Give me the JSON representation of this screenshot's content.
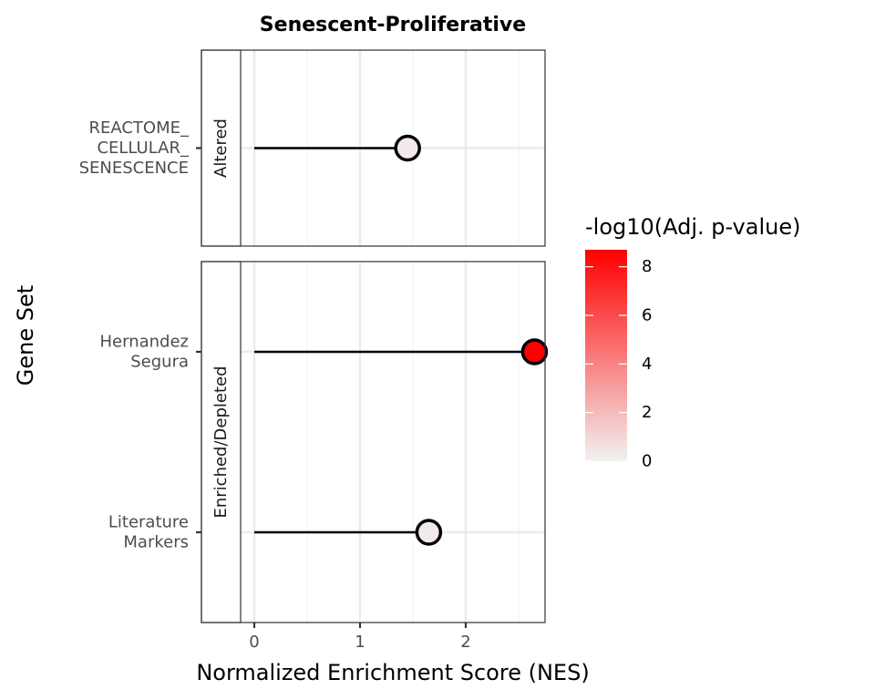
{
  "chart_data": {
    "type": "lollipop",
    "title": "Senescent-Proliferative",
    "xlabel": "Normalized Enrichment Score (NES)",
    "ylabel": "Gene Set",
    "xlim": [
      -0.5,
      2.75
    ],
    "x_ticks": [
      0,
      1,
      2
    ],
    "grid": true,
    "panels": [
      {
        "strip_label": "Altered",
        "points": [
          {
            "label": [
              "REACTOME_",
              "CELLULAR_",
              "SENESCENCE"
            ],
            "nes": 1.45,
            "neg_log10_padj": 0.3
          }
        ]
      },
      {
        "strip_label": "Enriched/Depleted",
        "points": [
          {
            "label": [
              "Hernandez",
              "Segura"
            ],
            "nes": 2.65,
            "neg_log10_padj": 8.7
          },
          {
            "label": [
              "Literature",
              "Markers"
            ],
            "nes": 1.65,
            "neg_log10_padj": 0.3
          }
        ]
      }
    ],
    "legend": {
      "title": "-log10(Adj. p-value)",
      "placement": "right",
      "range": [
        0,
        8.7
      ],
      "ticks": [
        0,
        2,
        4,
        6,
        8
      ],
      "color_low": "#f2f2f2",
      "color_high": "#ff0000"
    }
  }
}
